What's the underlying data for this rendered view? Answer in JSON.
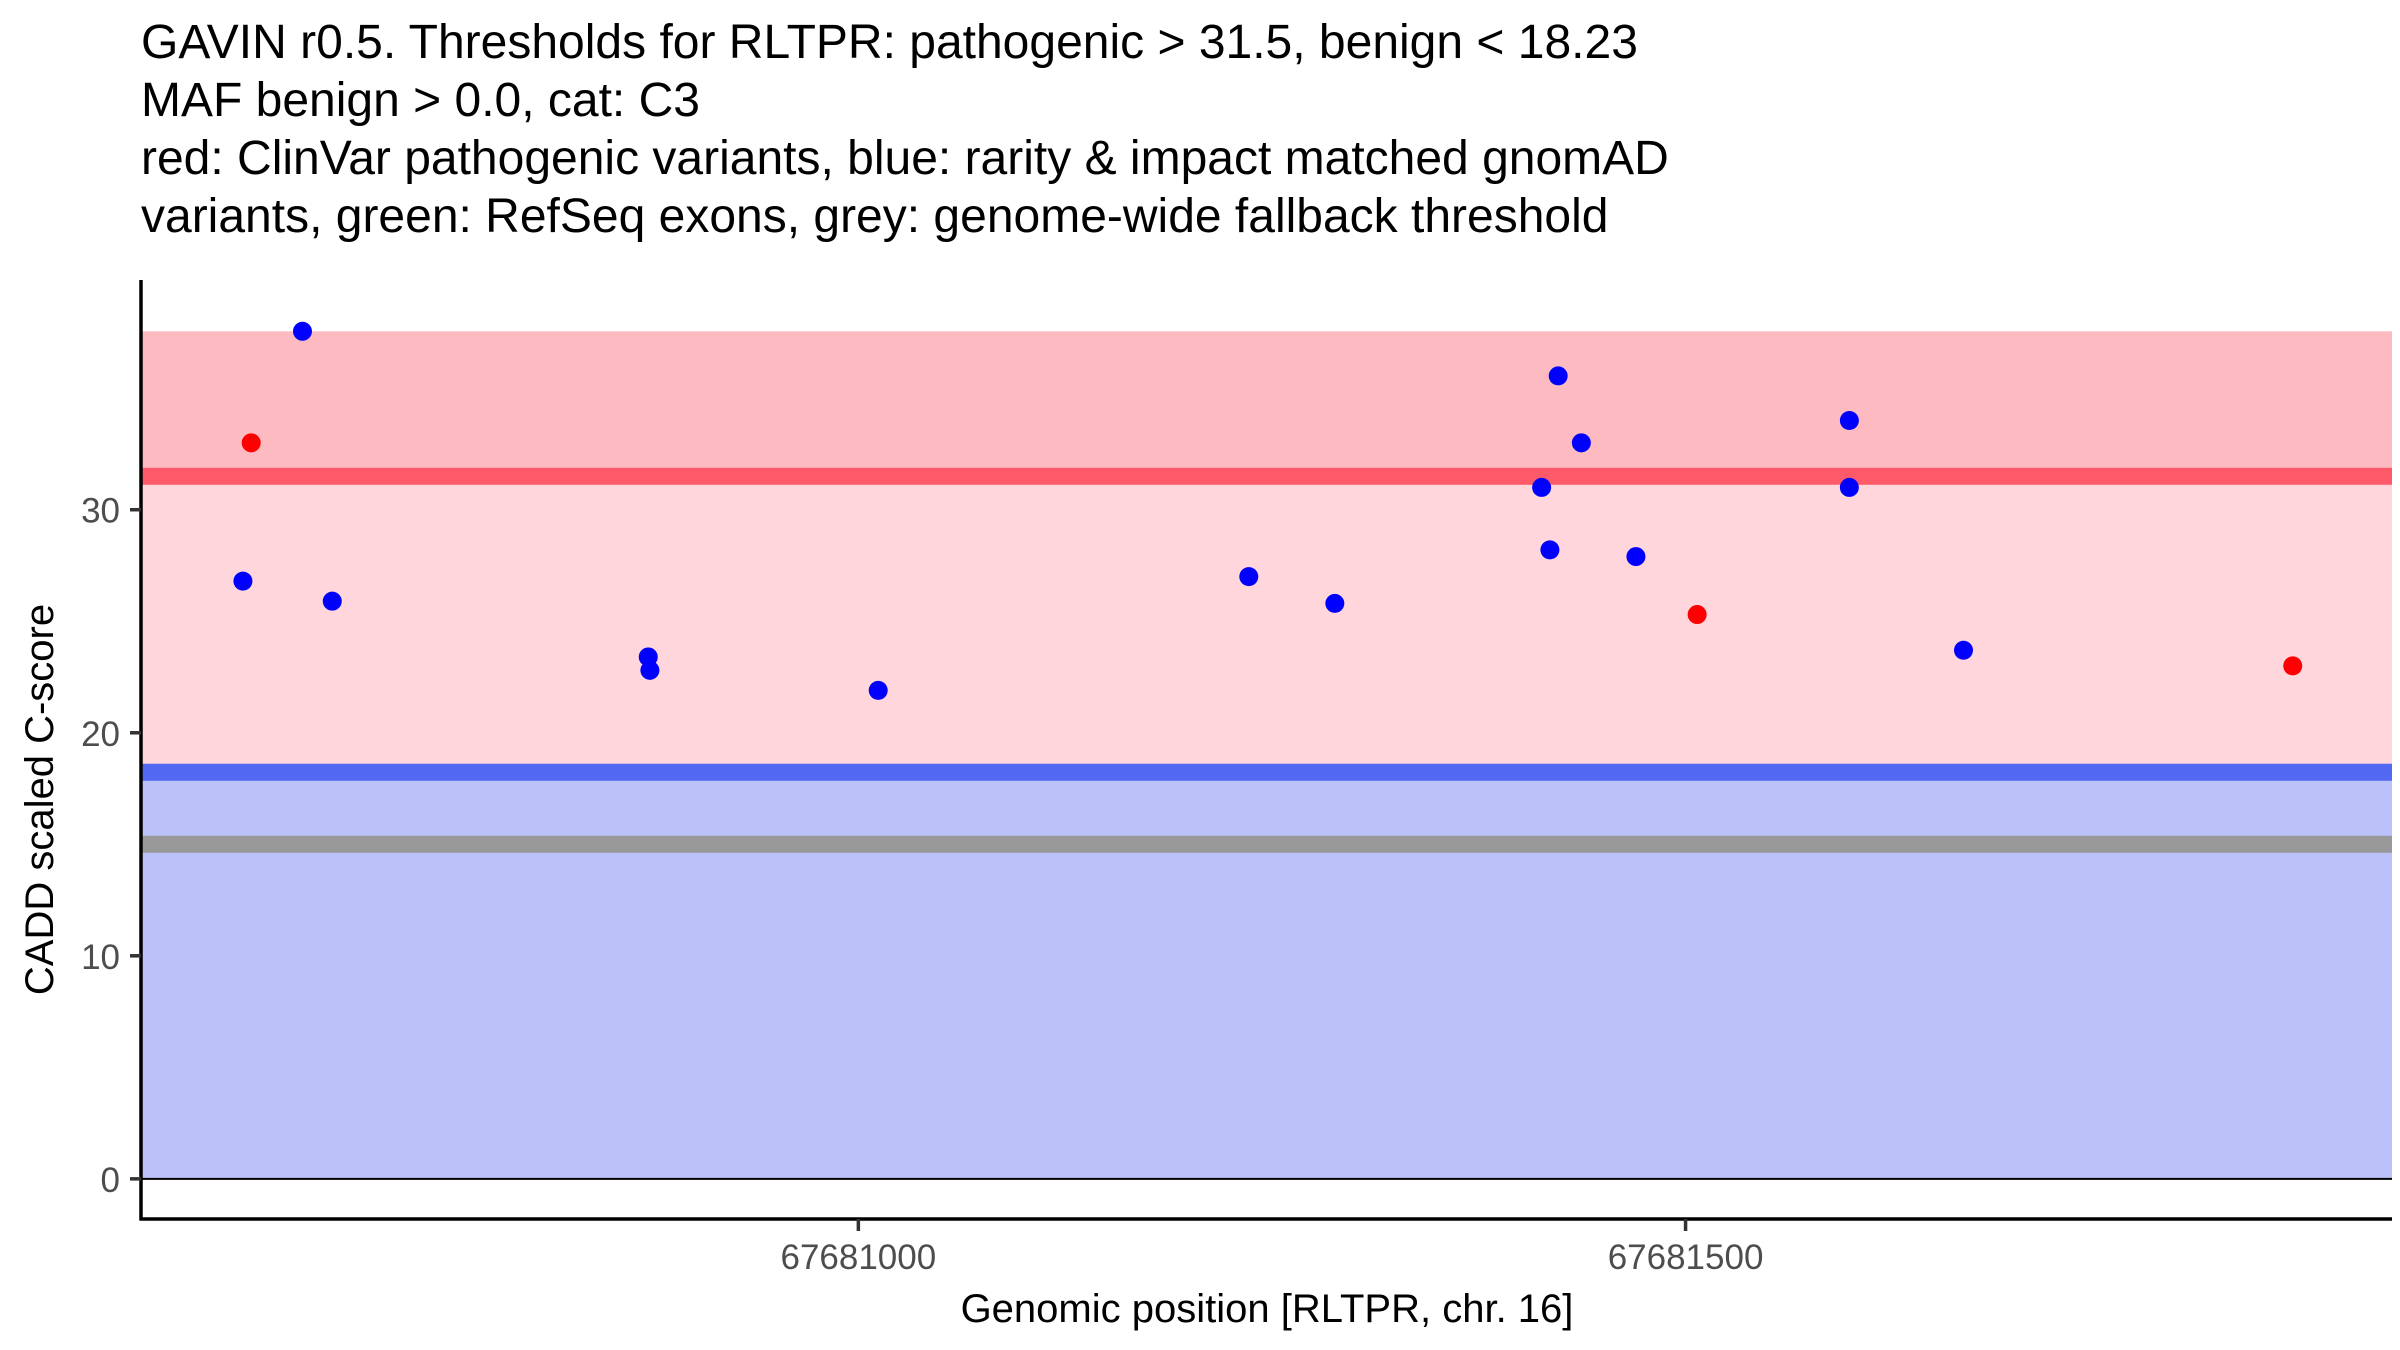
{
  "chart_data": {
    "type": "scatter",
    "title_lines": [
      "GAVIN r0.5. Thresholds for RLTPR: pathogenic > 31.5, benign < 18.23",
      "MAF benign > 0.0, cat: C3",
      "red: ClinVar pathogenic variants, blue: rarity & impact matched gnomAD",
      "variants, green: RefSeq exons, grey: genome-wide fallback threshold"
    ],
    "xlabel": "Genomic position [RLTPR, chr. 16]",
    "ylabel": "CADD scaled C-score",
    "xlim": [
      67680567,
      67681927
    ],
    "ylim": [
      -1.8,
      40.3
    ],
    "x_ticks": [
      67681000,
      67681500
    ],
    "x_tick_labels": [
      "67681000",
      "67681500"
    ],
    "y_ticks": [
      0,
      10,
      20,
      30
    ],
    "y_tick_labels": [
      "0",
      "10",
      "20",
      "30"
    ],
    "grid": false,
    "legend": "none",
    "bands": [
      {
        "name": "pathogenic-upper-band",
        "from": 31.5,
        "to": 38,
        "color": "#FDBBC1"
      },
      {
        "name": "pathogenic-lower-band",
        "from": 18.23,
        "to": 31.5,
        "color": "#FED6DB"
      },
      {
        "name": "benign-band",
        "from": 0,
        "to": 18.23,
        "color": "#BBC1F9"
      }
    ],
    "threshold_lines": [
      {
        "name": "pathogenic-threshold",
        "value": 31.5,
        "color": "#FF5A6A"
      },
      {
        "name": "benign-threshold",
        "value": 18.23,
        "color": "#5267F2"
      },
      {
        "name": "fallback-threshold",
        "value": 15.0,
        "color": "#999999"
      }
    ],
    "series": [
      {
        "name": "ClinVar pathogenic variants",
        "color": "#FF0000",
        "points": [
          {
            "x": 67680633,
            "y": 33.0
          },
          {
            "x": 67681507,
            "y": 25.3
          },
          {
            "x": 67681867,
            "y": 23.0
          }
        ]
      },
      {
        "name": "gnomAD matched variants",
        "color": "#0000FF",
        "points": [
          {
            "x": 67680628,
            "y": 26.8
          },
          {
            "x": 67680664,
            "y": 38.0
          },
          {
            "x": 67680682,
            "y": 25.9
          },
          {
            "x": 67680873,
            "y": 23.4
          },
          {
            "x": 67680874,
            "y": 22.8
          },
          {
            "x": 67681012,
            "y": 21.9
          },
          {
            "x": 67681236,
            "y": 27.0
          },
          {
            "x": 67681288,
            "y": 25.8
          },
          {
            "x": 67681413,
            "y": 31.0
          },
          {
            "x": 67681418,
            "y": 28.2
          },
          {
            "x": 67681423,
            "y": 36.0
          },
          {
            "x": 67681437,
            "y": 33.0
          },
          {
            "x": 67681470,
            "y": 27.9
          },
          {
            "x": 67681599,
            "y": 34.0
          },
          {
            "x": 67681599,
            "y": 31.0
          },
          {
            "x": 67681668,
            "y": 23.7
          }
        ]
      }
    ]
  }
}
